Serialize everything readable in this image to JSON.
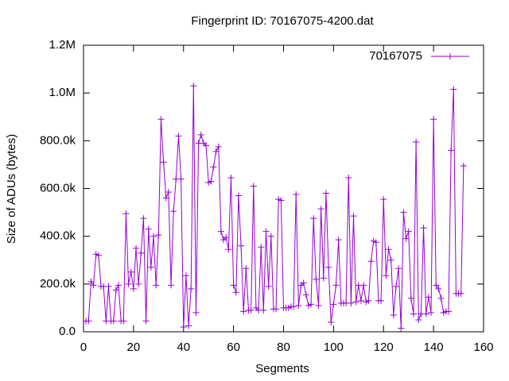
{
  "chart_data": {
    "type": "line",
    "title": "Fingerprint ID: 70167075-4200.dat",
    "xlabel": "Segments",
    "ylabel": "Size of ADUs (bytes)",
    "xlim": [
      0,
      160
    ],
    "xticks": [
      0,
      20,
      40,
      60,
      80,
      100,
      120,
      140,
      160
    ],
    "ylim": [
      0,
      1200000
    ],
    "yticks": [
      {
        "value": 0,
        "label": "0.0"
      },
      {
        "value": 200000,
        "label": "200.0k"
      },
      {
        "value": 400000,
        "label": "400.0k"
      },
      {
        "value": 600000,
        "label": "600.0k"
      },
      {
        "value": 800000,
        "label": "800.0k"
      },
      {
        "value": 1000000,
        "label": "1.0M"
      },
      {
        "value": 1200000,
        "label": "1.2M"
      }
    ],
    "legend": "top-right",
    "x": [
      1,
      2,
      3,
      4,
      5,
      6,
      7,
      8,
      9,
      10,
      11,
      12,
      13,
      14,
      15,
      16,
      17,
      18,
      19,
      20,
      21,
      22,
      23,
      24,
      25,
      26,
      27,
      28,
      29,
      30,
      31,
      32,
      33,
      34,
      35,
      36,
      37,
      38,
      39,
      40,
      41,
      42,
      43,
      44,
      45,
      46,
      47,
      48,
      49,
      50,
      51,
      52,
      53,
      54,
      55,
      56,
      57,
      58,
      59,
      60,
      61,
      62,
      63,
      64,
      65,
      66,
      67,
      68,
      69,
      70,
      71,
      72,
      73,
      74,
      75,
      76,
      77,
      78,
      79,
      80,
      81,
      82,
      83,
      84,
      85,
      86,
      87,
      88,
      89,
      90,
      91,
      92,
      93,
      94,
      95,
      96,
      97,
      98,
      99,
      100,
      101,
      102,
      103,
      104,
      105,
      106,
      107,
      108,
      109,
      110,
      111,
      112,
      113,
      114,
      115,
      116,
      117,
      118,
      119,
      120,
      121,
      122,
      123,
      124,
      125,
      126,
      127,
      128,
      129,
      130,
      131,
      132,
      133,
      134,
      135,
      136,
      137,
      138,
      139,
      140,
      141,
      142,
      143,
      144,
      145,
      146,
      147,
      148,
      149,
      150,
      151,
      152
    ],
    "series": [
      {
        "name": "70167075",
        "color": "#9400d3",
        "values": [
          45000,
          45000,
          210000,
          195000,
          325000,
          320000,
          190000,
          190000,
          45000,
          190000,
          45000,
          45000,
          175000,
          195000,
          45000,
          45000,
          495000,
          200000,
          250000,
          180000,
          350000,
          200000,
          330000,
          475000,
          45000,
          430000,
          270000,
          400000,
          195000,
          405000,
          890000,
          710000,
          560000,
          585000,
          195000,
          505000,
          640000,
          820000,
          640000,
          20000,
          235000,
          25000,
          180000,
          1030000,
          80000,
          790000,
          825000,
          790000,
          780000,
          625000,
          630000,
          690000,
          755000,
          775000,
          420000,
          385000,
          395000,
          345000,
          645000,
          195000,
          165000,
          570000,
          360000,
          85000,
          265000,
          90000,
          90000,
          610000,
          100000,
          90000,
          355000,
          90000,
          420000,
          190000,
          400000,
          95000,
          95000,
          555000,
          550000,
          100000,
          100000,
          100000,
          105000,
          105000,
          575000,
          110000,
          195000,
          205000,
          155000,
          110000,
          115000,
          475000,
          220000,
          110000,
          515000,
          225000,
          580000,
          270000,
          40000,
          115000,
          195000,
          385000,
          120000,
          120000,
          120000,
          645000,
          120000,
          485000,
          125000,
          195000,
          130000,
          195000,
          125000,
          130000,
          295000,
          380000,
          375000,
          130000,
          130000,
          555000,
          235000,
          345000,
          300000,
          70000,
          190000,
          265000,
          15000,
          500000,
          390000,
          420000,
          140000,
          75000,
          795000,
          50000,
          75000,
          435000,
          75000,
          145000,
          80000,
          890000,
          195000,
          180000,
          140000,
          80000,
          85000,
          85000,
          760000,
          1015000,
          160000,
          160000,
          160000,
          695000
        ]
      }
    ]
  }
}
